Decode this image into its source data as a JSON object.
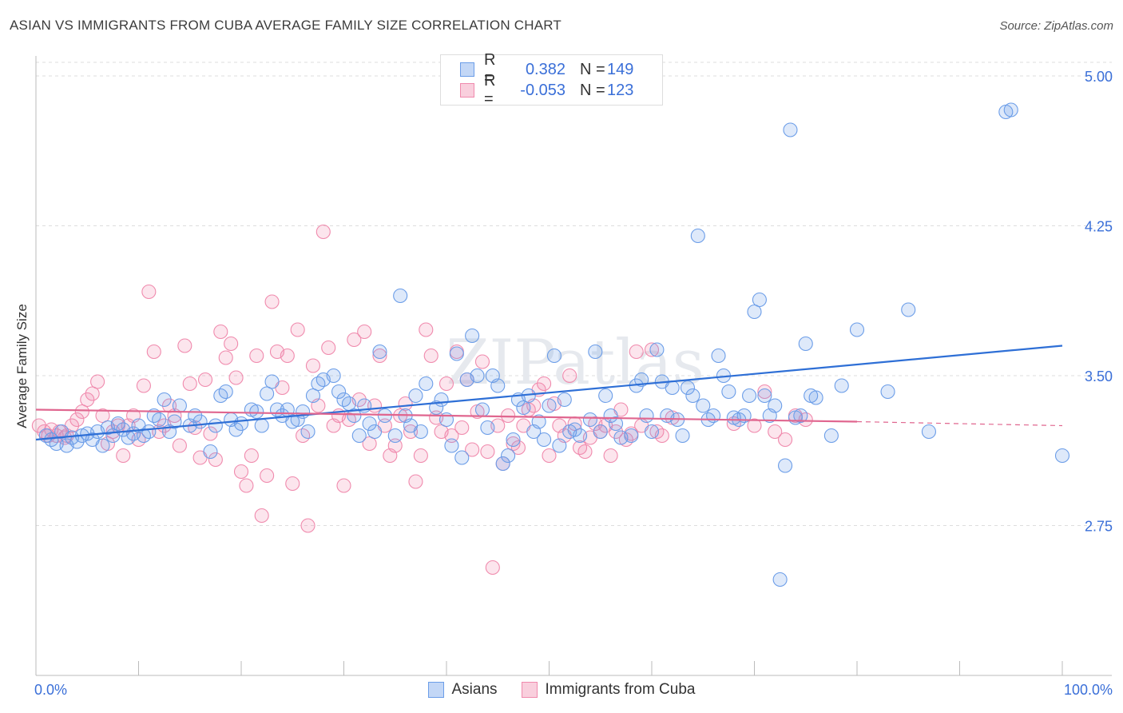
{
  "title": "ASIAN VS IMMIGRANTS FROM CUBA AVERAGE FAMILY SIZE CORRELATION CHART",
  "source": "Source: ZipAtlas.com",
  "watermark": "ZIPatlas",
  "legend": {
    "rows": [
      {
        "r_label": "R =",
        "r_value": "0.382",
        "n_label": "N =",
        "n_value": "149"
      },
      {
        "r_label": "R =",
        "r_value": "-0.053",
        "n_label": "N =",
        "n_value": "123"
      }
    ]
  },
  "chart_data": {
    "type": "scatter",
    "xlabel": "",
    "ylabel": "Average Family Size",
    "xlim": [
      0,
      100
    ],
    "ylim": [
      2.0,
      5.1
    ],
    "x_tick_labels": [
      "0.0%",
      "100.0%"
    ],
    "y_ticks": [
      2.75,
      3.5,
      4.25,
      5.0
    ],
    "y_tick_labels": [
      "2.75",
      "3.50",
      "4.25",
      "5.00"
    ],
    "grid": true,
    "colors": {
      "asians": "#6b9de8",
      "cuba": "#f08aad",
      "asians_line": "#2e6fd6",
      "cuba_line": "#e0668f",
      "tick_text": "#3a6fd8"
    },
    "series": [
      {
        "name": "Asians",
        "trend": {
          "x": [
            0,
            100
          ],
          "y": [
            3.18,
            3.65
          ]
        },
        "points": [
          [
            1.0,
            3.2
          ],
          [
            1.5,
            3.18
          ],
          [
            2.0,
            3.16
          ],
          [
            2.5,
            3.22
          ],
          [
            3.0,
            3.15
          ],
          [
            3.5,
            3.19
          ],
          [
            4.0,
            3.17
          ],
          [
            4.5,
            3.2
          ],
          [
            5.0,
            3.21
          ],
          [
            5.5,
            3.18
          ],
          [
            6.0,
            3.22
          ],
          [
            6.5,
            3.15
          ],
          [
            7.0,
            3.24
          ],
          [
            7.5,
            3.2
          ],
          [
            8.0,
            3.26
          ],
          [
            8.5,
            3.23
          ],
          [
            9.0,
            3.19
          ],
          [
            9.5,
            3.21
          ],
          [
            10.0,
            3.25
          ],
          [
            10.5,
            3.2
          ],
          [
            11.0,
            3.22
          ],
          [
            11.5,
            3.3
          ],
          [
            12.0,
            3.28
          ],
          [
            12.5,
            3.38
          ],
          [
            13.0,
            3.22
          ],
          [
            13.5,
            3.27
          ],
          [
            14.0,
            3.35
          ],
          [
            15.0,
            3.25
          ],
          [
            15.5,
            3.3
          ],
          [
            16.0,
            3.27
          ],
          [
            17.0,
            3.12
          ],
          [
            17.5,
            3.25
          ],
          [
            18.0,
            3.4
          ],
          [
            18.5,
            3.42
          ],
          [
            19.0,
            3.28
          ],
          [
            19.5,
            3.23
          ],
          [
            20.0,
            3.26
          ],
          [
            21.0,
            3.33
          ],
          [
            21.5,
            3.32
          ],
          [
            22.0,
            3.25
          ],
          [
            22.5,
            3.41
          ],
          [
            23.0,
            3.47
          ],
          [
            23.5,
            3.33
          ],
          [
            24.0,
            3.3
          ],
          [
            24.5,
            3.33
          ],
          [
            25.0,
            3.27
          ],
          [
            25.5,
            3.28
          ],
          [
            26.0,
            3.32
          ],
          [
            26.5,
            3.22
          ],
          [
            27.0,
            3.4
          ],
          [
            27.5,
            3.46
          ],
          [
            28.0,
            3.48
          ],
          [
            29.0,
            3.5
          ],
          [
            29.5,
            3.42
          ],
          [
            30.0,
            3.38
          ],
          [
            30.5,
            3.36
          ],
          [
            31.0,
            3.3
          ],
          [
            31.5,
            3.2
          ],
          [
            32.0,
            3.35
          ],
          [
            32.5,
            3.26
          ],
          [
            33.0,
            3.22
          ],
          [
            33.5,
            3.62
          ],
          [
            34.0,
            3.3
          ],
          [
            35.0,
            3.2
          ],
          [
            35.5,
            3.9
          ],
          [
            36.0,
            3.3
          ],
          [
            36.5,
            3.25
          ],
          [
            37.0,
            3.4
          ],
          [
            37.5,
            3.22
          ],
          [
            38.0,
            3.46
          ],
          [
            39.0,
            3.34
          ],
          [
            39.5,
            3.38
          ],
          [
            40.0,
            3.28
          ],
          [
            40.5,
            3.15
          ],
          [
            41.0,
            3.61
          ],
          [
            41.5,
            3.09
          ],
          [
            42.0,
            3.48
          ],
          [
            42.5,
            3.7
          ],
          [
            43.0,
            3.5
          ],
          [
            43.5,
            3.33
          ],
          [
            44.0,
            3.24
          ],
          [
            44.5,
            3.5
          ],
          [
            45.0,
            3.45
          ],
          [
            45.5,
            3.06
          ],
          [
            46.0,
            3.1
          ],
          [
            46.5,
            3.18
          ],
          [
            47.0,
            3.38
          ],
          [
            47.5,
            3.34
          ],
          [
            48.0,
            3.4
          ],
          [
            48.5,
            3.22
          ],
          [
            49.0,
            3.27
          ],
          [
            49.5,
            3.18
          ],
          [
            50.0,
            3.35
          ],
          [
            50.5,
            3.6
          ],
          [
            51.0,
            3.15
          ],
          [
            51.5,
            3.38
          ],
          [
            52.0,
            3.22
          ],
          [
            52.5,
            3.23
          ],
          [
            53.0,
            3.2
          ],
          [
            54.0,
            3.28
          ],
          [
            54.5,
            3.62
          ],
          [
            55.0,
            3.22
          ],
          [
            55.5,
            3.4
          ],
          [
            56.0,
            3.3
          ],
          [
            56.5,
            3.26
          ],
          [
            57.0,
            3.19
          ],
          [
            58.0,
            3.2
          ],
          [
            58.5,
            3.45
          ],
          [
            59.0,
            3.48
          ],
          [
            59.5,
            3.3
          ],
          [
            60.0,
            3.22
          ],
          [
            60.5,
            3.63
          ],
          [
            61.0,
            3.47
          ],
          [
            61.5,
            3.3
          ],
          [
            62.0,
            3.44
          ],
          [
            62.5,
            3.28
          ],
          [
            63.0,
            3.2
          ],
          [
            63.5,
            3.44
          ],
          [
            64.0,
            3.4
          ],
          [
            64.5,
            4.2
          ],
          [
            65.0,
            3.35
          ],
          [
            65.5,
            3.28
          ],
          [
            66.0,
            3.3
          ],
          [
            66.5,
            3.6
          ],
          [
            67.0,
            3.5
          ],
          [
            67.5,
            3.42
          ],
          [
            68.0,
            3.29
          ],
          [
            68.5,
            3.28
          ],
          [
            69.0,
            3.3
          ],
          [
            69.5,
            3.4
          ],
          [
            70.0,
            3.82
          ],
          [
            70.5,
            3.88
          ],
          [
            71.0,
            3.4
          ],
          [
            71.5,
            3.3
          ],
          [
            72.0,
            3.35
          ],
          [
            72.5,
            2.48
          ],
          [
            73.0,
            3.05
          ],
          [
            73.5,
            4.73
          ],
          [
            74.0,
            3.29
          ],
          [
            74.5,
            3.3
          ],
          [
            75.0,
            3.66
          ],
          [
            75.5,
            3.4
          ],
          [
            76.0,
            3.39
          ],
          [
            77.5,
            3.2
          ],
          [
            78.5,
            3.45
          ],
          [
            80.0,
            3.73
          ],
          [
            83.0,
            3.42
          ],
          [
            85.0,
            3.83
          ],
          [
            87.0,
            3.22
          ],
          [
            94.5,
            4.82
          ],
          [
            95.0,
            4.83
          ],
          [
            100.0,
            3.1
          ]
        ]
      },
      {
        "name": "Immigrants from Cuba",
        "trend": {
          "x": [
            0,
            80
          ],
          "y": [
            3.33,
            3.27
          ]
        },
        "trend_dashed": {
          "x": [
            80,
            100
          ],
          "y": [
            3.27,
            3.25
          ]
        },
        "points": [
          [
            0.3,
            3.25
          ],
          [
            0.8,
            3.22
          ],
          [
            1.2,
            3.2
          ],
          [
            1.5,
            3.23
          ],
          [
            2.0,
            3.2
          ],
          [
            2.3,
            3.22
          ],
          [
            2.8,
            3.19
          ],
          [
            3.0,
            3.2
          ],
          [
            3.5,
            3.25
          ],
          [
            4.0,
            3.28
          ],
          [
            4.5,
            3.32
          ],
          [
            5.0,
            3.38
          ],
          [
            5.5,
            3.41
          ],
          [
            6.0,
            3.47
          ],
          [
            6.5,
            3.3
          ],
          [
            7.0,
            3.16
          ],
          [
            7.5,
            3.22
          ],
          [
            8.0,
            3.25
          ],
          [
            8.5,
            3.1
          ],
          [
            9.0,
            3.25
          ],
          [
            9.5,
            3.3
          ],
          [
            10.0,
            3.18
          ],
          [
            10.5,
            3.45
          ],
          [
            11.0,
            3.92
          ],
          [
            11.5,
            3.62
          ],
          [
            12.0,
            3.22
          ],
          [
            12.5,
            3.25
          ],
          [
            13.0,
            3.35
          ],
          [
            13.5,
            3.3
          ],
          [
            14.0,
            3.15
          ],
          [
            14.5,
            3.65
          ],
          [
            15.0,
            3.46
          ],
          [
            15.5,
            3.24
          ],
          [
            16.0,
            3.09
          ],
          [
            16.5,
            3.48
          ],
          [
            17.0,
            3.21
          ],
          [
            17.5,
            3.08
          ],
          [
            18.0,
            3.72
          ],
          [
            18.5,
            3.59
          ],
          [
            19.0,
            3.66
          ],
          [
            19.5,
            3.49
          ],
          [
            20.0,
            3.02
          ],
          [
            20.5,
            2.95
          ],
          [
            21.0,
            3.1
          ],
          [
            21.5,
            3.6
          ],
          [
            22.0,
            2.8
          ],
          [
            22.5,
            3.0
          ],
          [
            23.0,
            3.87
          ],
          [
            23.5,
            3.62
          ],
          [
            24.0,
            3.44
          ],
          [
            24.5,
            3.6
          ],
          [
            25.0,
            2.96
          ],
          [
            25.5,
            3.73
          ],
          [
            26.0,
            3.2
          ],
          [
            26.5,
            2.75
          ],
          [
            27.0,
            3.55
          ],
          [
            27.5,
            3.35
          ],
          [
            28.0,
            4.22
          ],
          [
            28.5,
            3.64
          ],
          [
            29.0,
            3.25
          ],
          [
            29.5,
            3.3
          ],
          [
            30.0,
            2.95
          ],
          [
            30.5,
            3.28
          ],
          [
            31.0,
            3.68
          ],
          [
            31.5,
            3.38
          ],
          [
            32.0,
            3.72
          ],
          [
            32.5,
            3.16
          ],
          [
            33.0,
            3.35
          ],
          [
            33.5,
            3.6
          ],
          [
            34.0,
            3.25
          ],
          [
            34.5,
            3.1
          ],
          [
            35.0,
            3.15
          ],
          [
            35.5,
            3.3
          ],
          [
            36.0,
            3.36
          ],
          [
            36.5,
            3.22
          ],
          [
            37.0,
            2.97
          ],
          [
            37.5,
            3.1
          ],
          [
            38.0,
            3.73
          ],
          [
            38.5,
            3.6
          ],
          [
            39.0,
            3.29
          ],
          [
            39.5,
            3.22
          ],
          [
            40.0,
            3.46
          ],
          [
            40.5,
            3.2
          ],
          [
            41.0,
            3.62
          ],
          [
            41.5,
            3.24
          ],
          [
            42.0,
            3.48
          ],
          [
            42.5,
            3.13
          ],
          [
            43.0,
            3.32
          ],
          [
            43.5,
            3.57
          ],
          [
            44.0,
            3.12
          ],
          [
            44.5,
            2.54
          ],
          [
            45.0,
            3.25
          ],
          [
            45.5,
            3.06
          ],
          [
            46.0,
            3.3
          ],
          [
            46.5,
            3.16
          ],
          [
            47.0,
            3.14
          ],
          [
            47.5,
            3.25
          ],
          [
            48.0,
            3.33
          ],
          [
            48.5,
            3.35
          ],
          [
            49.0,
            3.43
          ],
          [
            49.5,
            3.46
          ],
          [
            50.0,
            3.1
          ],
          [
            50.5,
            3.36
          ],
          [
            51.0,
            3.25
          ],
          [
            51.5,
            3.2
          ],
          [
            52.0,
            3.5
          ],
          [
            52.5,
            3.26
          ],
          [
            53.0,
            3.14
          ],
          [
            53.5,
            3.12
          ],
          [
            54.0,
            3.19
          ],
          [
            54.5,
            3.26
          ],
          [
            55.0,
            3.22
          ],
          [
            55.5,
            3.25
          ],
          [
            56.0,
            3.1
          ],
          [
            56.5,
            3.22
          ],
          [
            57.0,
            3.33
          ],
          [
            57.5,
            3.18
          ],
          [
            58.0,
            3.21
          ],
          [
            58.5,
            3.62
          ],
          [
            59.0,
            3.25
          ],
          [
            60.0,
            3.63
          ],
          [
            60.5,
            3.22
          ],
          [
            61.0,
            3.2
          ],
          [
            62.0,
            3.29
          ],
          [
            68.0,
            3.26
          ],
          [
            70.0,
            3.25
          ],
          [
            71.0,
            3.42
          ],
          [
            72.0,
            3.22
          ],
          [
            73.0,
            3.18
          ],
          [
            74.0,
            3.3
          ],
          [
            75.0,
            3.28
          ]
        ]
      }
    ]
  }
}
